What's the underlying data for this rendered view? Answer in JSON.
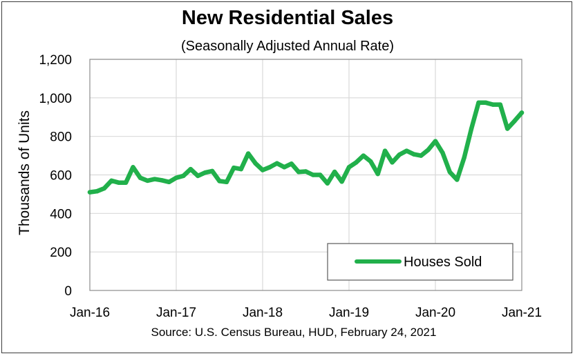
{
  "chart_data": {
    "type": "line",
    "title": "New Residential Sales",
    "subtitle": "(Seasonally Adjusted Annual Rate)",
    "ylabel": "Thousands of Units",
    "xlabel": "",
    "source": "Source:  U.S. Census Bureau, HUD, February 24, 2021",
    "ylim": [
      0,
      1200
    ],
    "yticks": [
      0,
      200,
      400,
      600,
      800,
      1000,
      1200
    ],
    "ytick_labels": [
      "0",
      "200",
      "400",
      "600",
      "800",
      "1,000",
      "1,200"
    ],
    "xtick_labels": [
      "Jan-16",
      "Jan-17",
      "Jan-18",
      "Jan-19",
      "Jan-20",
      "Jan-21"
    ],
    "grid": true,
    "legend": "bottom-right",
    "series": [
      {
        "name": "Houses Sold",
        "color": "#21b04b",
        "x": [
          "2016-01",
          "2016-02",
          "2016-03",
          "2016-04",
          "2016-05",
          "2016-06",
          "2016-07",
          "2016-08",
          "2016-09",
          "2016-10",
          "2016-11",
          "2016-12",
          "2017-01",
          "2017-02",
          "2017-03",
          "2017-04",
          "2017-05",
          "2017-06",
          "2017-07",
          "2017-08",
          "2017-09",
          "2017-10",
          "2017-11",
          "2017-12",
          "2018-01",
          "2018-02",
          "2018-03",
          "2018-04",
          "2018-05",
          "2018-06",
          "2018-07",
          "2018-08",
          "2018-09",
          "2018-10",
          "2018-11",
          "2018-12",
          "2019-01",
          "2019-02",
          "2019-03",
          "2019-04",
          "2019-05",
          "2019-06",
          "2019-07",
          "2019-08",
          "2019-09",
          "2019-10",
          "2019-11",
          "2019-12",
          "2020-01",
          "2020-02",
          "2020-03",
          "2020-04",
          "2020-05",
          "2020-06",
          "2020-07",
          "2020-08",
          "2020-09",
          "2020-10",
          "2020-11",
          "2020-12",
          "2021-01"
        ],
        "values": [
          510,
          515,
          530,
          570,
          560,
          560,
          640,
          585,
          570,
          578,
          572,
          563,
          585,
          595,
          630,
          595,
          612,
          620,
          568,
          563,
          637,
          630,
          711,
          660,
          625,
          640,
          660,
          640,
          658,
          615,
          618,
          600,
          600,
          556,
          616,
          565,
          640,
          665,
          700,
          670,
          605,
          725,
          665,
          705,
          725,
          707,
          700,
          730,
          775,
          715,
          615,
          575,
          690,
          840,
          975,
          975,
          965,
          965,
          840,
          880,
          923
        ]
      }
    ]
  }
}
